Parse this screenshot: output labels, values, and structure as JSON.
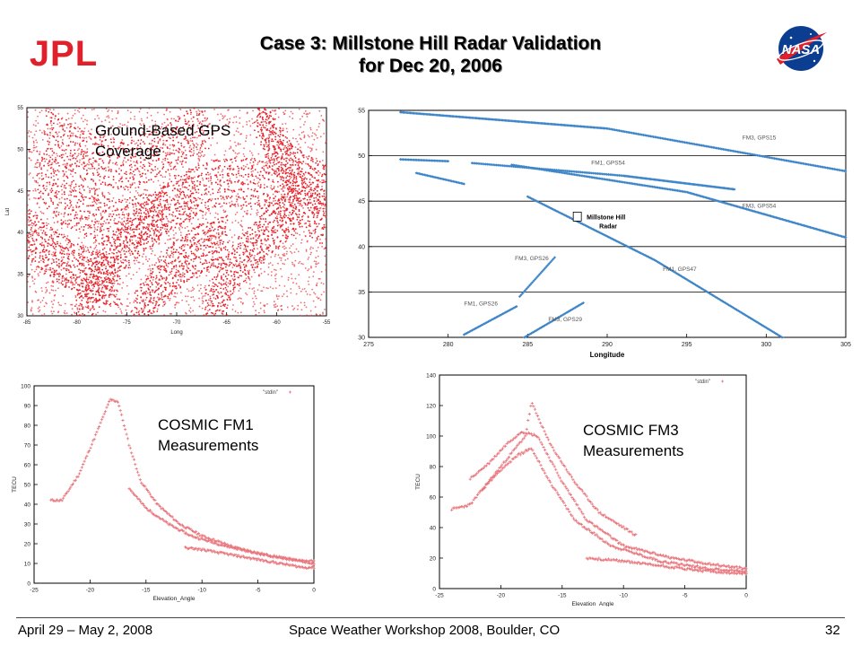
{
  "header": {
    "title_line1": "Case 3: Millstone Hill Radar Validation",
    "title_line2": "for Dec 20, 2006",
    "left_logo_text": "JPL",
    "right_logo_text": "NASA"
  },
  "overlays": {
    "gps_coverage_line1": "Ground-Based GPS",
    "gps_coverage_line2": "Coverage",
    "fm1_line1": "COSMIC FM1",
    "fm1_line2": "Measurements",
    "fm3_line1": "COSMIC FM3",
    "fm3_line2": "Measurements"
  },
  "footer": {
    "date": "April 29 – May 2, 2008",
    "event": "Space Weather Workshop 2008, Boulder, CO",
    "page": "32"
  },
  "colors": {
    "coverage_red": "#e8222a",
    "track_blue": "#3f86c9",
    "tecu_red": "#e8737a"
  },
  "chart_data": [
    {
      "id": "gps-coverage",
      "type": "scatter",
      "title": "",
      "xlabel": "Long",
      "ylabel": "Lat",
      "xlim": [
        -85,
        -55
      ],
      "ylim": [
        30,
        55
      ],
      "xticks": [
        "-85",
        "-80",
        "-75",
        "-70",
        "-65",
        "-60",
        "-55"
      ],
      "yticks": [
        "30",
        "35",
        "40",
        "45",
        "50",
        "55"
      ],
      "series": [
        {
          "arcs": [
            {
              "x": [
                -83,
                -79,
                -75,
                -71,
                -67
              ],
              "y": [
                52,
                49,
                48,
                50,
                53
              ]
            },
            {
              "x": [
                -84,
                -80,
                -76,
                -72,
                -68
              ],
              "y": [
                47,
                43,
                41,
                42,
                45
              ]
            },
            {
              "x": [
                -80,
                -77,
                -74,
                -71
              ],
              "y": [
                30,
                36,
                40,
                43
              ]
            },
            {
              "x": [
                -74,
                -71,
                -68,
                -65
              ],
              "y": [
                30,
                35,
                38,
                39
              ]
            },
            {
              "x": [
                -67,
                -64,
                -61,
                -58
              ],
              "y": [
                30,
                36,
                40,
                43
              ]
            },
            {
              "x": [
                -62,
                -60,
                -58,
                -55
              ],
              "y": [
                55,
                50,
                47,
                45
              ]
            },
            {
              "x": [
                -70,
                -66,
                -62,
                -58,
                -55
              ],
              "y": [
                44,
                46,
                46,
                44,
                41
              ]
            },
            {
              "x": [
                -85,
                -82,
                -79,
                -76
              ],
              "y": [
                40,
                37,
                35,
                34
              ]
            }
          ]
        }
      ]
    },
    {
      "id": "ground-tracks",
      "type": "scatter",
      "xlabel": "Longitude",
      "ylabel": "",
      "xlim": [
        275,
        305
      ],
      "ylim": [
        30,
        55
      ],
      "xticks": [
        "275",
        "280",
        "285",
        "290",
        "295",
        "300",
        "305"
      ],
      "yticks": [
        "30",
        "35",
        "40",
        "45",
        "50",
        "55"
      ],
      "grid": "horizontal",
      "series": [
        {
          "name": "FM3, GPS15",
          "x": [
            277,
            290,
            305
          ],
          "y": [
            54.8,
            53,
            48.3
          ]
        },
        {
          "name": "FM1, GPS54",
          "x": [
            281.5,
            291,
            298
          ],
          "y": [
            49.2,
            47.8,
            46.3
          ]
        },
        {
          "name": "FM3, GPS54",
          "x": [
            284,
            295,
            305
          ],
          "y": [
            49,
            46,
            41
          ]
        },
        {
          "name": "FM1, GPS47",
          "x": [
            285,
            293,
            301
          ],
          "y": [
            45.5,
            38.5,
            30
          ]
        },
        {
          "name": "FM3, GPS26",
          "x": [
            284.5,
            286.7
          ],
          "y": [
            34.5,
            38.8
          ]
        },
        {
          "name": "FM1, GPS26",
          "x": [
            281,
            284.3
          ],
          "y": [
            30.3,
            33.4
          ]
        },
        {
          "name": "FM3, GPS29",
          "x": [
            284.8,
            288.5
          ],
          "y": [
            30,
            33.8
          ]
        },
        {
          "name": "",
          "x": [
            277,
            280
          ],
          "y": [
            49.6,
            49.4
          ]
        },
        {
          "name": "",
          "x": [
            278,
            281
          ],
          "y": [
            48.1,
            46.9
          ]
        }
      ],
      "annotation": {
        "label_line1": "Millstone Hill",
        "label_line2": "Radar",
        "x": 288.6,
        "y": 43.3
      }
    },
    {
      "id": "fm1-tecu",
      "type": "scatter",
      "xlabel": "Elevation_Angle",
      "ylabel": "TECU",
      "legend": "\"stdin\"",
      "legend_position": "top-right",
      "xlim": [
        -25,
        0
      ],
      "ylim": [
        0,
        100
      ],
      "xticks": [
        "-25",
        "-20",
        "-15",
        "-10",
        "-5",
        "0"
      ],
      "yticks": [
        "0",
        "10",
        "20",
        "30",
        "40",
        "50",
        "60",
        "70",
        "80",
        "90",
        "100"
      ],
      "series": [
        {
          "name": "\"stdin\"",
          "curves": [
            {
              "x": [
                -23.5,
                -22.5,
                -21,
                -19.5,
                -18.2,
                -17.5,
                -16.5,
                -15.5,
                -14,
                -12,
                -10,
                -7,
                -4,
                -1,
                0
              ],
              "y": [
                42,
                42,
                55,
                75,
                93,
                92,
                70,
                52,
                40,
                30,
                24,
                18,
                14,
                11,
                10
              ]
            },
            {
              "x": [
                -16.5,
                -15,
                -13,
                -11,
                -8,
                -5,
                -2,
                0
              ],
              "y": [
                48,
                38,
                30,
                24,
                19,
                15,
                12,
                11
              ]
            },
            {
              "x": [
                -11.5,
                -10,
                -7,
                -4,
                -1,
                0
              ],
              "y": [
                18,
                17,
                14,
                11,
                8,
                8
              ]
            }
          ]
        }
      ]
    },
    {
      "id": "fm3-tecu",
      "type": "scatter",
      "xlabel": "Elevation_Angle",
      "ylabel": "TECU",
      "legend": "\"stdin\"",
      "legend_position": "top-right",
      "xlim": [
        -25,
        0
      ],
      "ylim": [
        0,
        140
      ],
      "xticks": [
        "-25",
        "-20",
        "-15",
        "-10",
        "-5",
        "0"
      ],
      "yticks": [
        "0",
        "20",
        "40",
        "60",
        "80",
        "100",
        "120",
        "140"
      ],
      "series": [
        {
          "name": "\"stdin\"",
          "curves": [
            {
              "x": [
                -24,
                -22.5,
                -21,
                -19.5,
                -18,
                -17.5,
                -16,
                -14,
                -12,
                -9
              ],
              "y": [
                52,
                55,
                70,
                85,
                100,
                122,
                95,
                70,
                50,
                35
              ]
            },
            {
              "x": [
                -22.5,
                -21,
                -19.5,
                -18.3,
                -17,
                -15,
                -13,
                -10,
                -6,
                -2,
                0
              ],
              "y": [
                72,
                82,
                95,
                103,
                100,
                70,
                45,
                28,
                20,
                15,
                13
              ]
            },
            {
              "x": [
                -21.5,
                -20,
                -18.5,
                -17.5,
                -16,
                -14,
                -11,
                -7,
                -3,
                0
              ],
              "y": [
                65,
                78,
                88,
                92,
                70,
                45,
                28,
                18,
                13,
                11
              ]
            },
            {
              "x": [
                -13,
                -10,
                -7,
                -4,
                -1,
                0
              ],
              "y": [
                20,
                18,
                15,
                12,
                10,
                10
              ]
            }
          ]
        }
      ]
    }
  ]
}
